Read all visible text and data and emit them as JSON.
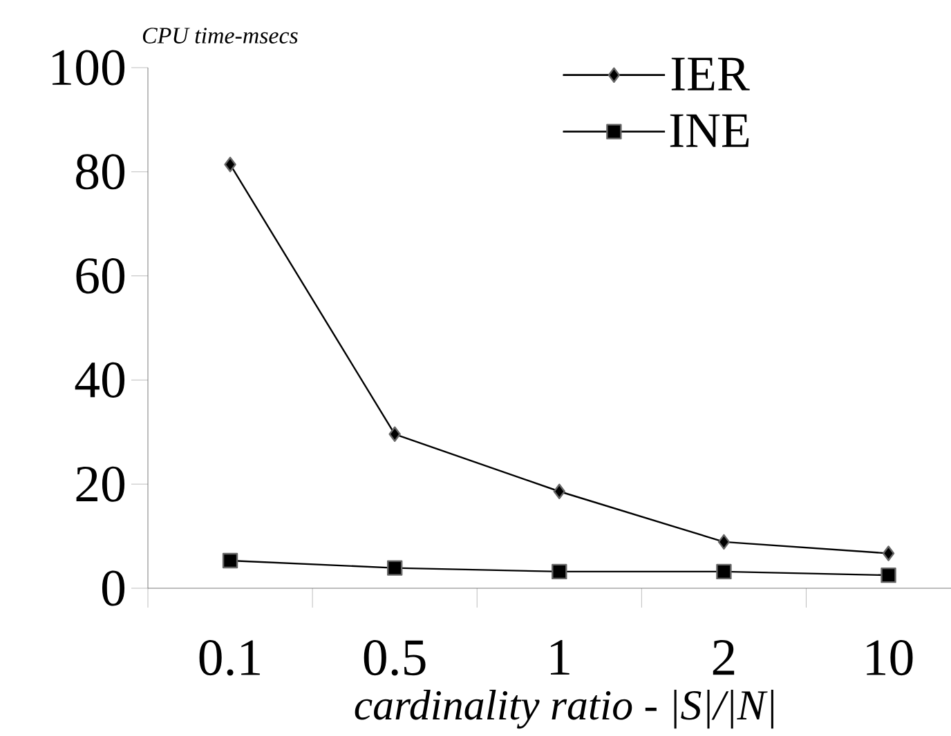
{
  "chart_data": {
    "type": "line",
    "xlabel": "*cardinality ratio - |S|/|N|*",
    "ylabel": "*CPU time-msecs*",
    "categories": [
      "0.1",
      "0.5",
      "1",
      "2",
      "10"
    ],
    "ylim": [
      0,
      100
    ],
    "yticks": [
      0,
      20,
      40,
      60,
      80,
      100
    ],
    "legend": "top right",
    "grid": false,
    "line_style": "solid",
    "series": [
      {
        "name": "IER",
        "color": "#000000",
        "marker": "diamond",
        "values": [
          81.4,
          29.6,
          18.6,
          8.9,
          6.7
        ]
      },
      {
        "name": "INE",
        "color": "#000000",
        "marker": "square",
        "values": [
          5.3,
          3.9,
          3.2,
          3.2,
          2.5
        ]
      }
    ]
  }
}
